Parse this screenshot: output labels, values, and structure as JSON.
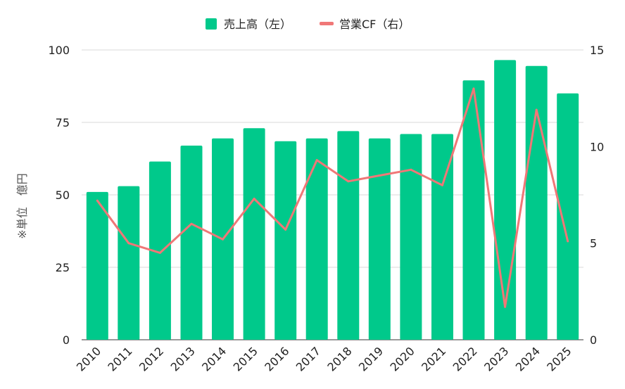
{
  "chart_data": {
    "type": "bar",
    "categories": [
      "2010",
      "2011",
      "2012",
      "2013",
      "2014",
      "2015",
      "2016",
      "2017",
      "2018",
      "2019",
      "2020",
      "2021",
      "2022",
      "2023",
      "2024",
      "2025"
    ],
    "series": [
      {
        "name": "売上高（左）",
        "type": "bar",
        "axis": "left",
        "color": "#00c98b",
        "values": [
          51,
          53,
          61.5,
          67,
          69.5,
          73,
          68.5,
          69.5,
          72,
          69.5,
          71,
          71,
          89.5,
          96.5,
          94.5,
          85
        ]
      },
      {
        "name": "営業CF（右）",
        "type": "line",
        "axis": "right",
        "color": "#f07777",
        "values": [
          7.2,
          5.0,
          4.5,
          6.0,
          5.2,
          7.3,
          5.7,
          9.3,
          8.2,
          8.5,
          8.8,
          8.0,
          13.0,
          1.7,
          11.9,
          5.1
        ]
      }
    ],
    "ylabel": "※単位　億円",
    "y_left": {
      "ylim": [
        0,
        100
      ],
      "ticks": [
        "0",
        "25",
        "50",
        "75",
        "100"
      ]
    },
    "y_right": {
      "ylim": [
        0,
        15
      ],
      "ticks": [
        "0",
        "5",
        "10",
        "15"
      ]
    },
    "grid": true,
    "legend": "top-center"
  }
}
